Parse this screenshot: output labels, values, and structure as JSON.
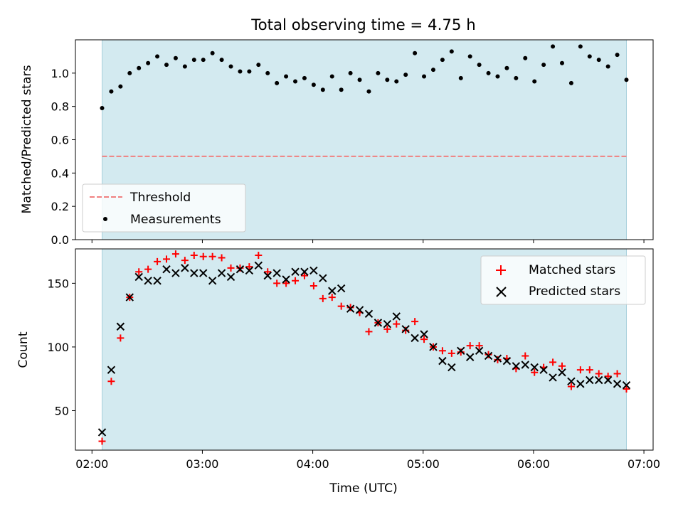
{
  "figure": {
    "suptitle": "Total observing time = 4.75 h",
    "xlabel": "Time (UTC)",
    "x_ticks": [
      "02:00",
      "03:00",
      "04:00",
      "05:00",
      "06:00",
      "07:00"
    ],
    "x_tick_minutes": [
      120,
      180,
      240,
      300,
      360,
      420
    ],
    "x_range_minutes": [
      111,
      425
    ],
    "shade_range_minutes": [
      125.5,
      410.5
    ],
    "colors": {
      "shade": "#d3eaf0",
      "threshold": "#f08080",
      "matched": "#ff0000",
      "predicted": "#000000",
      "measurement": "#000000"
    }
  },
  "chart_data": [
    {
      "type": "scatter",
      "ylabel": "Matched/Predicted stars",
      "ylim": [
        0,
        1.2
      ],
      "yticks": [
        0.0,
        0.2,
        0.4,
        0.6,
        0.8,
        1.0
      ],
      "ytick_labels": [
        "0.0",
        "0.2",
        "0.4",
        "0.6",
        "0.8",
        "1.0"
      ],
      "legend_position": "lower-left",
      "legend": [
        {
          "label": "Threshold",
          "marker": "dashed-line"
        },
        {
          "label": "Measurements",
          "marker": "dot"
        }
      ],
      "threshold": 0.5,
      "x_minutes": [
        125.5,
        130.5,
        135.5,
        140.5,
        145.5,
        150.5,
        155.5,
        160.5,
        165.5,
        170.5,
        175.5,
        180.5,
        185.5,
        190.5,
        195.5,
        200.5,
        205.5,
        210.5,
        215.5,
        220.5,
        225.5,
        230.5,
        235.5,
        240.5,
        245.5,
        250.5,
        255.5,
        260.5,
        265.5,
        270.5,
        275.5,
        280.5,
        285.5,
        290.5,
        295.5,
        300.5,
        305.5,
        310.5,
        315.5,
        320.5,
        325.5,
        330.5,
        335.5,
        340.5,
        345.5,
        350.5,
        355.5,
        360.5,
        365.5,
        370.5,
        375.5,
        380.5,
        385.5,
        390.5,
        395.5,
        400.5,
        405.5,
        410.5
      ],
      "values": [
        0.79,
        0.89,
        0.92,
        1.0,
        1.03,
        1.06,
        1.1,
        1.05,
        1.09,
        1.04,
        1.08,
        1.08,
        1.12,
        1.08,
        1.04,
        1.01,
        1.01,
        1.05,
        1.0,
        0.94,
        0.98,
        0.95,
        0.97,
        0.93,
        0.9,
        0.98,
        0.9,
        1.0,
        0.96,
        0.89,
        1.0,
        0.96,
        0.95,
        0.99,
        1.12,
        0.98,
        1.02,
        1.08,
        1.13,
        0.97,
        1.1,
        1.05,
        1.0,
        0.98,
        1.03,
        0.97,
        1.09,
        0.95,
        1.05,
        1.16,
        1.06,
        0.94,
        1.16,
        1.1,
        1.08,
        1.04,
        1.11,
        0.96
      ]
    },
    {
      "type": "scatter",
      "ylabel": "Count",
      "ylim": [
        19,
        177
      ],
      "yticks": [
        50,
        100,
        150
      ],
      "ytick_labels": [
        "50",
        "100",
        "150"
      ],
      "legend_position": "top-right",
      "series": [
        {
          "name": "Matched stars",
          "marker": "plus",
          "values": [
            26,
            73,
            107,
            139,
            159,
            161,
            167,
            169,
            173,
            168,
            172,
            171,
            171,
            170,
            162,
            162,
            163,
            172,
            159,
            150,
            150,
            152,
            156,
            148,
            138,
            139,
            132,
            131,
            127,
            112,
            119,
            114,
            118,
            113,
            120,
            106,
            100,
            97,
            95,
            96,
            101,
            101,
            94,
            90,
            91,
            83,
            93,
            80,
            84,
            88,
            85,
            69,
            82,
            82,
            79,
            77,
            79,
            67
          ]
        },
        {
          "name": "Predicted stars",
          "marker": "x",
          "values": [
            33,
            82,
            116,
            139,
            155,
            152,
            152,
            161,
            158,
            162,
            158,
            158,
            152,
            158,
            155,
            161,
            160,
            164,
            156,
            158,
            153,
            159,
            159,
            160,
            154,
            144,
            146,
            130,
            129,
            126,
            119,
            118,
            124,
            114,
            107,
            110,
            100,
            89,
            84,
            97,
            92,
            97,
            93,
            91,
            89,
            85,
            86,
            84,
            82,
            76,
            80,
            73,
            71,
            74,
            74,
            74,
            71,
            70
          ]
        }
      ]
    }
  ]
}
